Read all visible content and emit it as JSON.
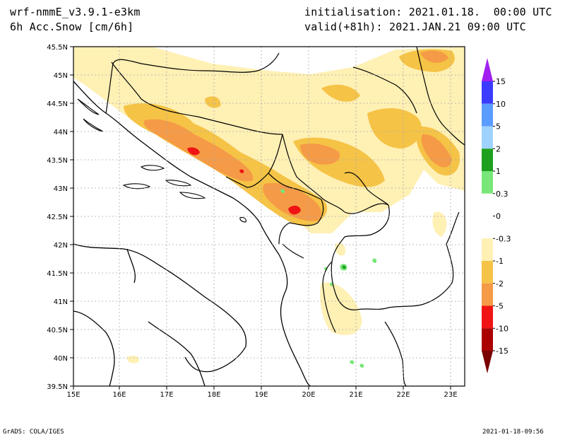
{
  "header": {
    "model": "wrf-nmmE_v3.9.1-e3km",
    "variable": "6h Acc.Snow [cm/6h]",
    "init": "initialisation: 2021.01.18.  00:00 UTC",
    "valid": "valid(+81h): 2021.JAN.21 09:00 UTC"
  },
  "axes": {
    "lat_labels": [
      "45.5N",
      "45N",
      "44.5N",
      "44N",
      "43.5N",
      "43N",
      "42.5N",
      "42N",
      "41.5N",
      "41N",
      "40.5N",
      "40N",
      "39.5N"
    ],
    "lon_labels": [
      "15E",
      "16E",
      "17E",
      "18E",
      "19E",
      "20E",
      "21E",
      "22E",
      "23E"
    ]
  },
  "colorbar": {
    "labels": [
      "15",
      "10",
      "5",
      "2",
      "1",
      "0.3",
      "0",
      "-0.3",
      "-1",
      "-2",
      "-5",
      "-10",
      "-15"
    ],
    "colors": [
      "#3c3cff",
      "#5a9cff",
      "#a0d2ff",
      "#1ea01e",
      "#78e678",
      "#ffffff",
      "#ffffff",
      "#fff0b4",
      "#f5c346",
      "#f59a46",
      "#f01414",
      "#aa0000"
    ],
    "top_arrow_color": "#a020f0",
    "bottom_arrow_color": "#7a0000"
  },
  "footer": {
    "left": "GrADS: COLA/IGES",
    "right": "2021-01-18-09:56"
  }
}
